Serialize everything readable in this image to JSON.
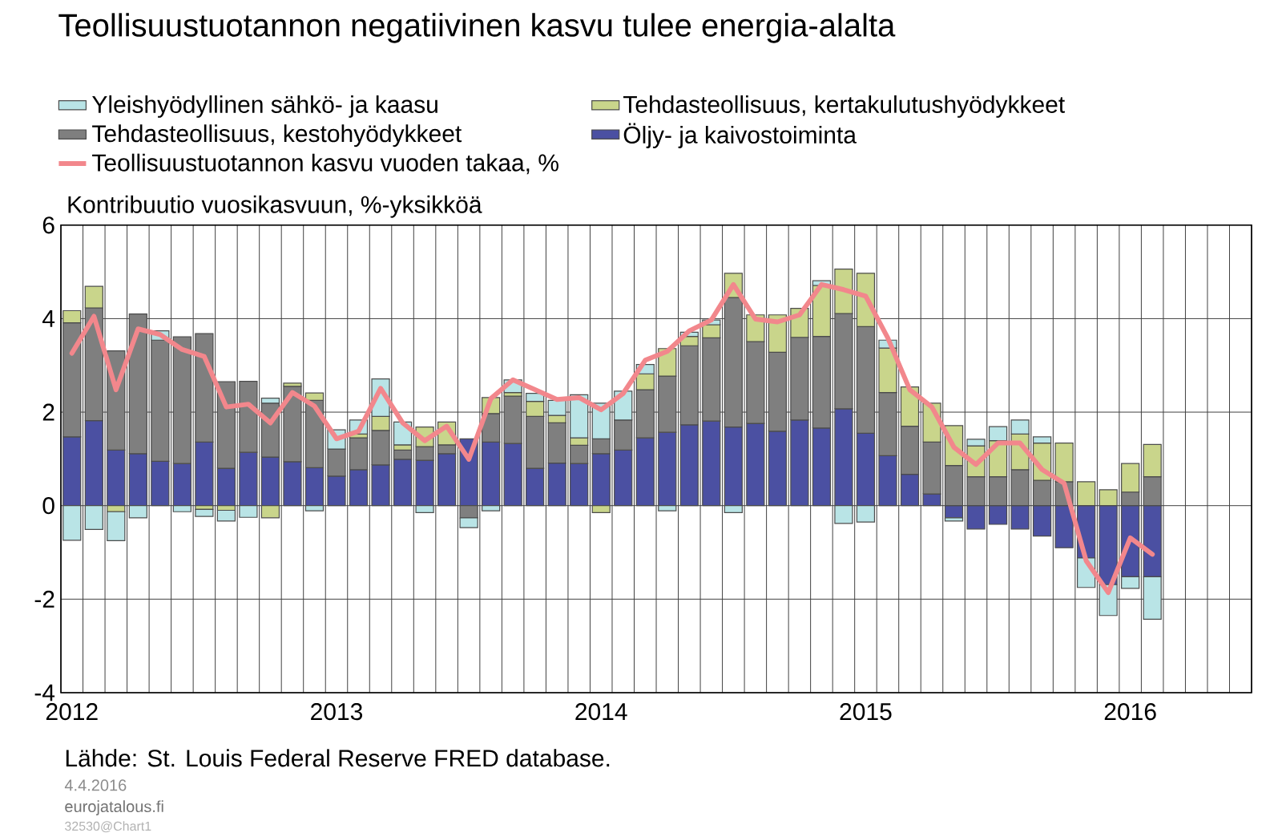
{
  "chart_data": {
    "type": "bar",
    "stacked": true,
    "title": "Teollisuustuotannon negatiivinen kasvu tulee energia-alalta",
    "ylabel": "Kontribuutio vuosikasvuun, %-yksikköä",
    "categories": [
      "2012",
      null,
      null,
      null,
      null,
      null,
      null,
      null,
      null,
      null,
      null,
      null,
      "2013",
      null,
      null,
      null,
      null,
      null,
      null,
      null,
      null,
      null,
      null,
      null,
      "2014",
      null,
      null,
      null,
      null,
      null,
      null,
      null,
      null,
      null,
      null,
      null,
      "2015",
      null,
      null,
      null,
      null,
      null,
      null,
      null,
      null,
      null,
      null,
      null,
      "2016",
      null,
      null,
      null,
      null,
      null
    ],
    "series": [
      {
        "name": "Öljy- ja kaivostoiminta",
        "color": "#4b50a2",
        "values": [
          1.47,
          1.82,
          1.19,
          1.11,
          0.95,
          0.9,
          1.36,
          0.8,
          1.14,
          1.04,
          0.94,
          0.81,
          0.63,
          0.77,
          0.87,
          0.99,
          0.97,
          1.11,
          1.43,
          1.36,
          1.33,
          0.8,
          0.91,
          0.9,
          1.11,
          1.19,
          1.45,
          1.57,
          1.73,
          1.81,
          1.68,
          1.76,
          1.59,
          1.83,
          1.66,
          2.07,
          1.55,
          1.07,
          0.67,
          0.25,
          -0.26,
          -0.5,
          -0.4,
          -0.5,
          -0.65,
          -0.9,
          -1.12,
          -1.69,
          -1.52,
          -1.52,
          null,
          null,
          null,
          null
        ]
      },
      {
        "name": "Tehdasteollisuus, kestohyödykkeet",
        "color": "#7f7f7f",
        "values": [
          2.44,
          2.41,
          2.12,
          2.99,
          2.59,
          2.71,
          2.32,
          1.85,
          1.52,
          1.15,
          1.61,
          1.44,
          0.58,
          0.68,
          0.74,
          0.2,
          0.29,
          0.19,
          -0.26,
          0.61,
          1.01,
          1.11,
          0.86,
          0.39,
          0.32,
          0.64,
          1.03,
          1.2,
          1.69,
          1.78,
          2.77,
          1.75,
          1.69,
          1.77,
          1.96,
          2.04,
          2.28,
          1.35,
          1.03,
          1.11,
          0.86,
          0.62,
          0.62,
          0.77,
          0.54,
          0.51,
          null,
          null,
          0.29,
          0.62,
          null,
          null,
          null,
          null
        ]
      },
      {
        "name": "Tehdasteollisuus, kertakulutushyödykkeet",
        "color": "#c9d58b",
        "values": [
          0.26,
          0.46,
          -0.13,
          null,
          null,
          null,
          -0.08,
          -0.1,
          null,
          -0.26,
          0.07,
          0.16,
          null,
          0.08,
          0.3,
          0.11,
          0.42,
          0.49,
          null,
          0.34,
          0.08,
          0.32,
          0.16,
          0.16,
          -0.15,
          null,
          0.34,
          0.59,
          0.2,
          0.28,
          0.52,
          0.57,
          0.8,
          0.62,
          1.09,
          0.95,
          1.14,
          0.95,
          0.84,
          0.83,
          0.85,
          0.66,
          0.77,
          0.76,
          0.8,
          0.83,
          0.51,
          0.34,
          0.61,
          0.69,
          null,
          null,
          null,
          null
        ]
      },
      {
        "name": "Yleishyödyllinen sähkö- ja kaasu",
        "color": "#b9e4e6",
        "values": [
          -0.74,
          -0.51,
          -0.62,
          -0.26,
          0.2,
          -0.13,
          -0.15,
          -0.23,
          -0.25,
          0.11,
          null,
          -0.11,
          0.41,
          0.3,
          0.8,
          0.49,
          -0.15,
          null,
          -0.21,
          -0.11,
          0.27,
          0.17,
          0.32,
          0.92,
          0.76,
          0.62,
          0.2,
          -0.11,
          0.09,
          0.1,
          -0.15,
          null,
          null,
          null,
          0.1,
          -0.38,
          -0.35,
          0.17,
          null,
          null,
          -0.07,
          0.14,
          0.3,
          0.3,
          0.13,
          null,
          -0.63,
          -0.66,
          -0.25,
          -0.91,
          null,
          null,
          null,
          null
        ]
      },
      {
        "name": "Teollisuustuotannon kasvu vuoden takaa, %",
        "type": "line",
        "color": "#f2878c",
        "values": [
          3.26,
          4.05,
          2.48,
          3.78,
          3.66,
          3.34,
          3.19,
          2.11,
          2.17,
          1.77,
          2.42,
          2.13,
          1.43,
          1.59,
          2.51,
          1.77,
          1.39,
          1.7,
          0.99,
          2.29,
          2.69,
          2.48,
          2.27,
          2.31,
          2.05,
          2.4,
          3.11,
          3.3,
          3.74,
          3.97,
          4.73,
          3.99,
          3.93,
          4.08,
          4.73,
          4.62,
          4.48,
          3.59,
          2.48,
          2.11,
          1.25,
          0.88,
          1.34,
          1.34,
          0.77,
          0.48,
          -1.18,
          -1.86,
          -0.69,
          -1.04,
          null,
          null,
          null,
          null
        ]
      }
    ],
    "ylim": [
      -4,
      6
    ],
    "yticks": [
      -4,
      -2,
      0,
      2,
      4,
      6
    ],
    "grid": true,
    "legend": "top",
    "annotations": [
      "Lähde: St. Louis Federal Reserve FRED database.",
      "4.4.2016",
      "eurojatalous.fi",
      "32530@Chart1"
    ]
  }
}
